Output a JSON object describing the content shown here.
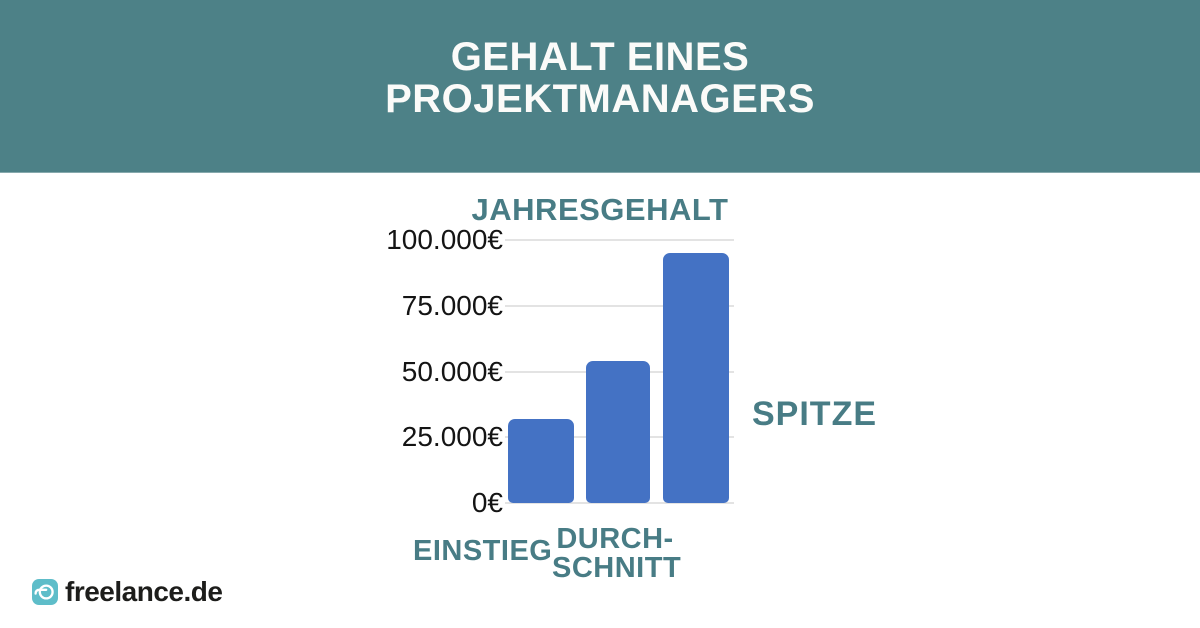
{
  "header": {
    "title_lines": [
      "GEHALT EINES",
      "PROJEKTMANAGERS"
    ]
  },
  "chart_data": {
    "type": "bar",
    "title": "JAHRESGEHALT",
    "categories": [
      "EINSTIEG",
      "DURCHSCHNITT",
      "SPITZE"
    ],
    "values": [
      32000,
      54000,
      95000
    ],
    "unit": "€",
    "ylim": [
      0,
      100000
    ],
    "yticks": [
      {
        "value": 100000,
        "label": "100.000€"
      },
      {
        "value": 75000,
        "label": "75.000€"
      },
      {
        "value": 50000,
        "label": "50.000€"
      },
      {
        "value": 25000,
        "label": "25.000€"
      },
      {
        "value": 0,
        "label": "0€"
      }
    ],
    "grid": true,
    "legend": "none",
    "category_labels": {
      "einstieg": "EINSTIEG",
      "durchschnitt_line1": "DURCH-",
      "durchschnitt_line2": "SCHNITT",
      "spitze": "SPITZE"
    }
  },
  "footer": {
    "logo_text": "freelance.de",
    "logo_icon": "freelance-logo-icon"
  },
  "colors": {
    "header_bg": "#4d8187",
    "header_text": "#fbfbf9",
    "label_teal": "#487c85",
    "bar_blue": "#4472c4",
    "grid_gray": "#e3e3e3",
    "tick_text": "#141414",
    "logo_teal": "#5ebdc9",
    "logo_text": "#1d1d1b"
  }
}
